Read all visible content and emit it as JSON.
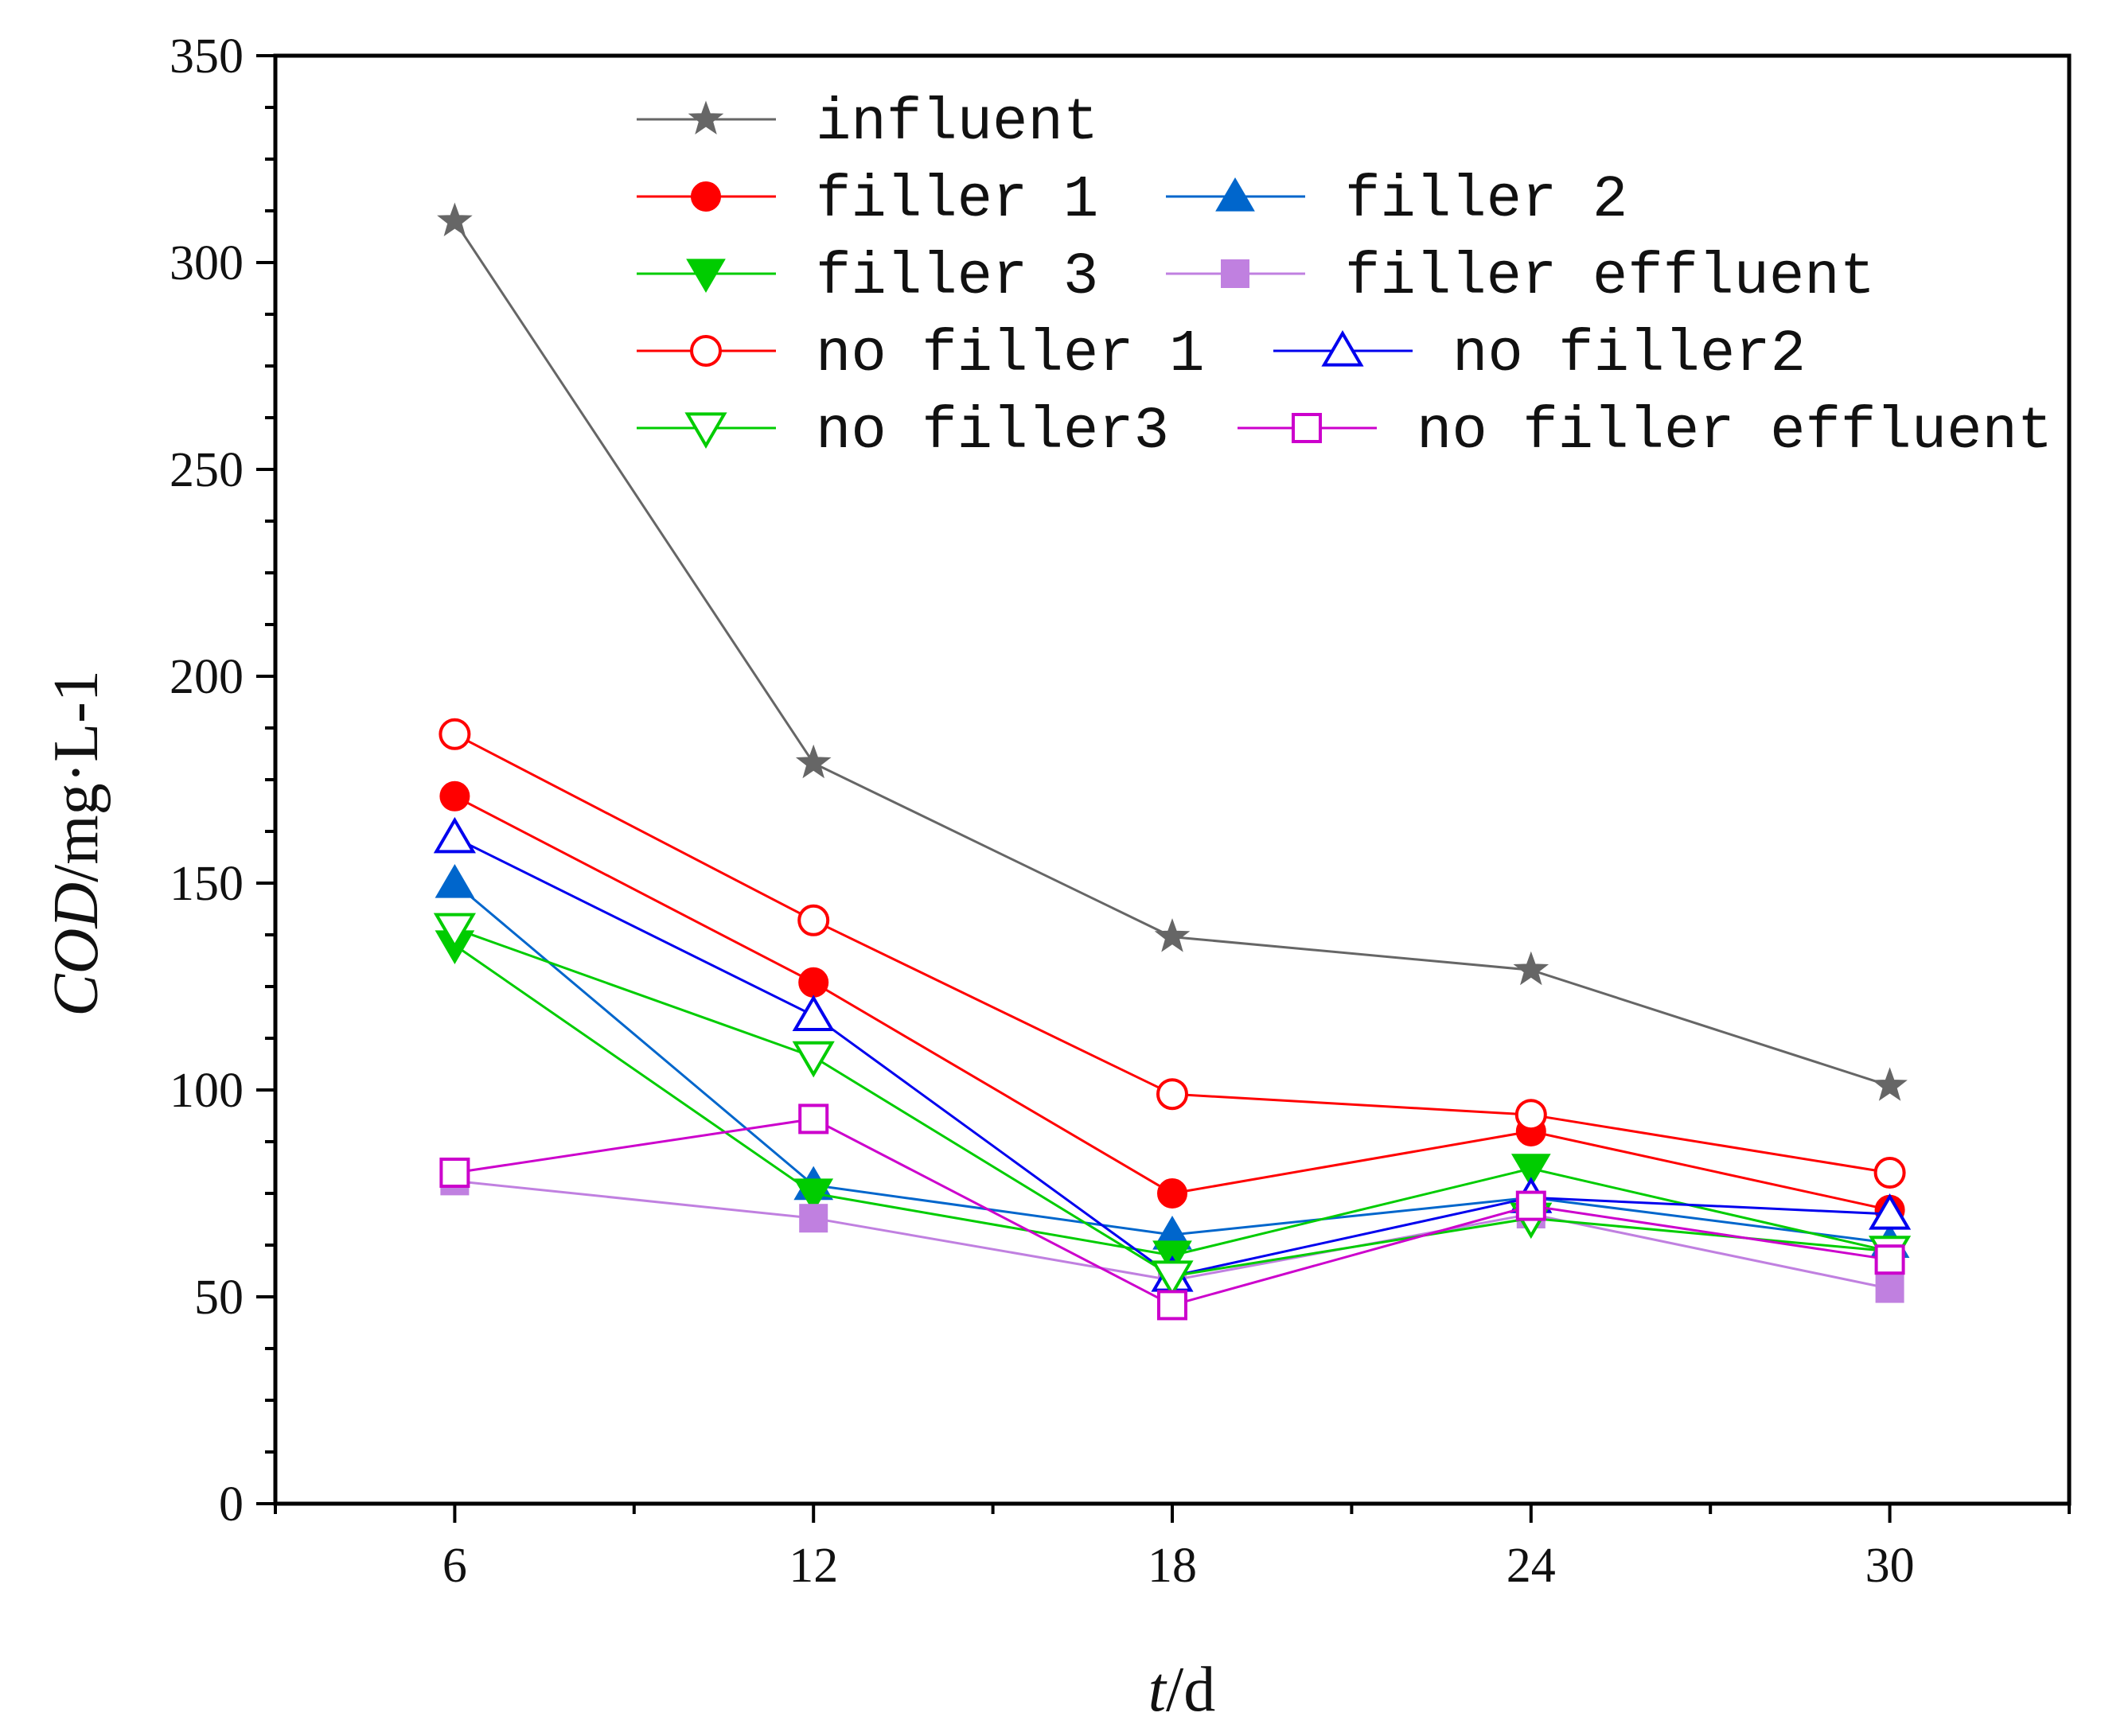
{
  "chart_data": {
    "type": "line",
    "xlabel_italic": "t",
    "xlabel_rest": "/d",
    "ylabel_italic": "COD",
    "ylabel_rest": "/mg·L-1",
    "x": [
      6,
      12,
      18,
      24,
      30
    ],
    "x_ticks": [
      "6",
      "12",
      "18",
      "24",
      "30"
    ],
    "xlim": [
      3,
      33
    ],
    "ylim": [
      0,
      350
    ],
    "y_ticks": [
      "0",
      "50",
      "100",
      "150",
      "200",
      "250",
      "300",
      "350"
    ],
    "y_tick_values": [
      0,
      50,
      100,
      150,
      200,
      250,
      300,
      350
    ],
    "grid": false,
    "legend_position": "top",
    "series": [
      {
        "name": "influent",
        "color": "#666666",
        "marker": "star",
        "filled": true,
        "values": [
          310,
          179,
          137,
          129,
          101
        ]
      },
      {
        "name": "filler 1",
        "color": "#ff0000",
        "marker": "circle",
        "filled": true,
        "values": [
          171,
          126,
          75,
          90,
          71
        ]
      },
      {
        "name": "filler 2",
        "color": "#0066cc",
        "marker": "triangle-up",
        "filled": true,
        "values": [
          150,
          77,
          65,
          74,
          63
        ]
      },
      {
        "name": "filler 3",
        "color": "#00cc00",
        "marker": "triangle-down",
        "filled": true,
        "values": [
          135,
          75,
          60,
          81,
          61
        ]
      },
      {
        "name": "filler effluent",
        "color": "#c080e0",
        "marker": "square",
        "filled": true,
        "values": [
          78,
          69,
          54,
          70,
          52
        ]
      },
      {
        "name": "no filler 1",
        "color": "#ff0000",
        "marker": "circle",
        "filled": false,
        "values": [
          186,
          141,
          99,
          94,
          80
        ]
      },
      {
        "name": "no filler2",
        "color": "#0000ee",
        "marker": "triangle-up",
        "filled": false,
        "values": [
          161,
          118,
          55,
          74,
          70
        ]
      },
      {
        "name": "no filler3",
        "color": "#00cc00",
        "marker": "triangle-down",
        "filled": false,
        "values": [
          139,
          108,
          55,
          69,
          61
        ]
      },
      {
        "name": "no filler effluent",
        "color": "#cc00cc",
        "marker": "square",
        "filled": false,
        "values": [
          80,
          93,
          48,
          72,
          59
        ]
      }
    ]
  }
}
